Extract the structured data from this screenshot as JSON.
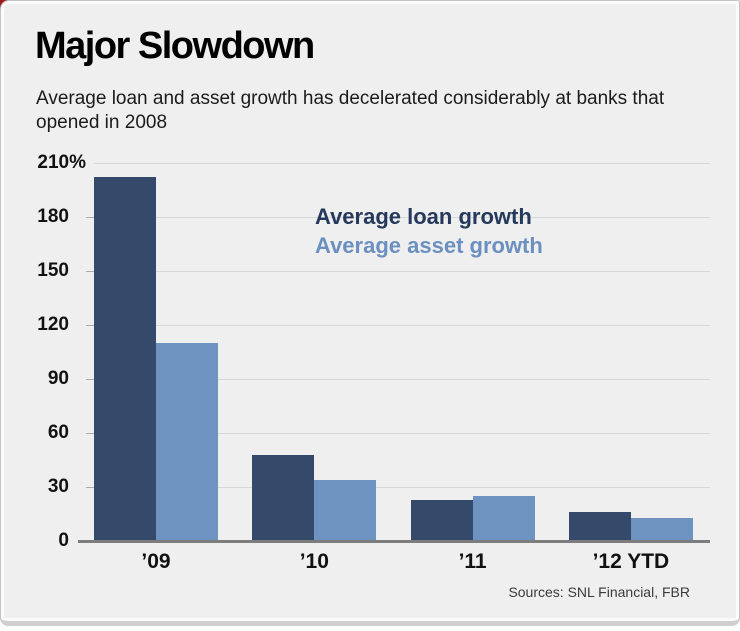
{
  "accent_corner_color": "#9e1c1e",
  "card_background": "#efefef",
  "chart_data": {
    "type": "bar",
    "title": "Major Slowdown",
    "subtitle": "Average loan and asset growth has decelerated considerably at banks that opened in 2008",
    "categories": [
      "’09",
      "’10",
      "’11",
      "’12 YTD"
    ],
    "series": [
      {
        "name": "Average loan growth",
        "color": "#35496a",
        "label_color": "#25395c",
        "values": [
          202,
          48,
          23,
          16
        ]
      },
      {
        "name": "Average asset growth",
        "color": "#6e93c0",
        "label_color": "#6b90c0",
        "values": [
          110,
          34,
          25,
          13
        ]
      }
    ],
    "y_ticks": [
      0,
      30,
      60,
      90,
      120,
      150,
      180,
      210
    ],
    "y_axis_suffix": "%",
    "ylim": [
      0,
      210
    ],
    "grid": true,
    "legend_position": "top-right-inside",
    "sources": "Sources: SNL Financial, FBR"
  }
}
